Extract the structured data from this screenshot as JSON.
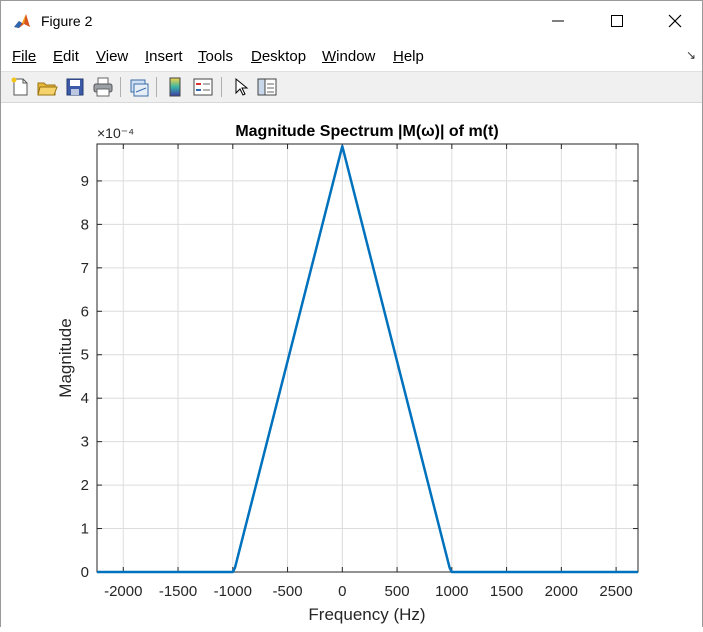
{
  "window": {
    "title": "Figure 2"
  },
  "menu": {
    "items": [
      "File",
      "Edit",
      "View",
      "Insert",
      "Tools",
      "Desktop",
      "Window",
      "Help"
    ],
    "underline_index": [
      0,
      0,
      0,
      0,
      0,
      0,
      0,
      0
    ]
  },
  "toolbar": {
    "icons": [
      "new-figure-icon",
      "open-file-icon",
      "save-icon",
      "print-icon",
      "link-plot-icon",
      "colorbar-icon",
      "legend-icon",
      "pointer-icon",
      "property-inspector-icon"
    ]
  },
  "colors": {
    "line": "#0072bd",
    "grid": "#dcdcdc"
  },
  "chart_data": {
    "type": "line",
    "title": "Magnitude Spectrum |M(ω)| of m(t)",
    "xlabel": "Frequency (Hz)",
    "ylabel": "Magnitude",
    "exponent_label": "×10⁻⁴",
    "xlim": [
      -2240,
      2700
    ],
    "ylim": [
      0,
      9.85
    ],
    "xticks": [
      -2000,
      -1500,
      -1000,
      -500,
      0,
      500,
      1000,
      1500,
      2000,
      2500
    ],
    "yticks": [
      0,
      1,
      2,
      3,
      4,
      5,
      6,
      7,
      8,
      9
    ],
    "grid": true,
    "series": [
      {
        "x": [
          -2240,
          -1000,
          -980,
          0,
          980,
          1000,
          2700
        ],
        "y": [
          0,
          0,
          0.1,
          9.8,
          0.1,
          0,
          0
        ]
      }
    ]
  }
}
